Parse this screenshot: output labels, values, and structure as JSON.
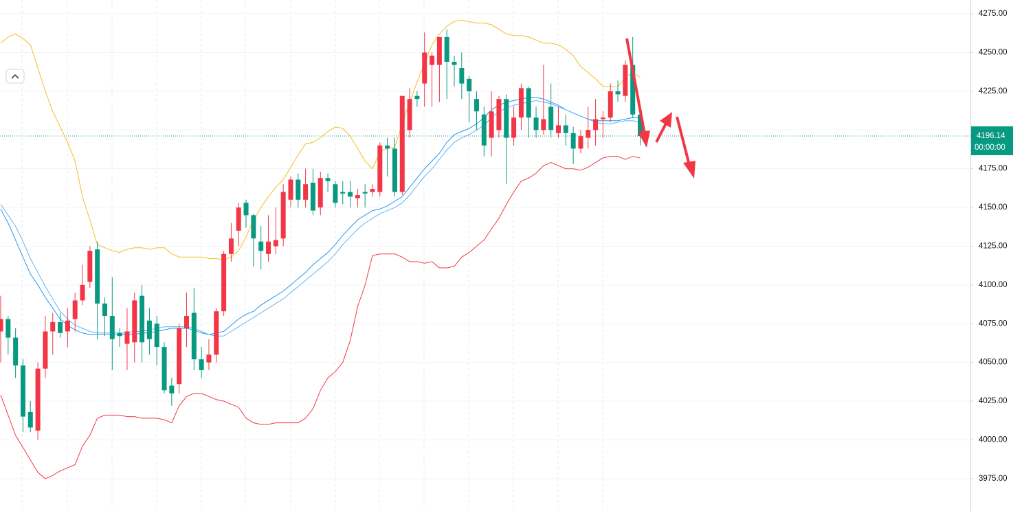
{
  "chart_data": {
    "type": "candlestick",
    "up_color": "#f23645",
    "down_color": "#089981",
    "open": [
      4070,
      4078,
      4066,
      4048,
      4018,
      4006,
      4046,
      4070,
      4076,
      4070,
      4078,
      4090,
      4102,
      4123,
      4088,
      4080,
      4069,
      4062,
      4063,
      4093,
      4077,
      4075,
      4060,
      4035,
      4036,
      4072,
      4082,
      4052,
      4050,
      4055,
      4083,
      4120,
      4135,
      4153,
      4145,
      4128,
      4120,
      4125,
      4130,
      4155,
      4168,
      4155,
      4166,
      4150,
      4169,
      4165,
      4160,
      4160,
      4156,
      4160,
      4160,
      4160,
      4190,
      4188,
      4160,
      4200,
      4222,
      4230,
      4242,
      4242,
      4260,
      4244,
      4240,
      4233,
      4220,
      4210,
      4195,
      4200,
      4220,
      4195,
      4208,
      4227,
      4208,
      4200,
      4215,
      4198,
      4203,
      4198,
      4188,
      4195,
      4200,
      4207,
      4208,
      4225,
      4222,
      4242,
      4210
    ],
    "high": [
      4093,
      4080,
      4072,
      4052,
      4025,
      4050,
      4080,
      4082,
      4082,
      4085,
      4095,
      4113,
      4125,
      4128,
      4092,
      4105,
      4072,
      4085,
      4095,
      4100,
      4085,
      4080,
      4063,
      4040,
      4075,
      4095,
      4098,
      4060,
      4065,
      4085,
      4122,
      4140,
      4153,
      4155,
      4146,
      4138,
      4145,
      4150,
      4165,
      4170,
      4172,
      4175,
      4175,
      4173,
      4172,
      4167,
      4167,
      4167,
      4162,
      4165,
      4165,
      4192,
      4195,
      4195,
      4222,
      4227,
      4225,
      4263,
      4250,
      4260,
      4265,
      4248,
      4250,
      4235,
      4225,
      4215,
      4225,
      4222,
      4223,
      4215,
      4230,
      4228,
      4215,
      4242,
      4230,
      4215,
      4210,
      4202,
      4200,
      4215,
      4220,
      4212,
      4230,
      4232,
      4245,
      4260,
      4212
    ],
    "low": [
      4050,
      4055,
      4040,
      4005,
      4005,
      4000,
      4040,
      4055,
      4066,
      4060,
      4070,
      4087,
      4098,
      4065,
      4067,
      4045,
      4060,
      4045,
      4050,
      4050,
      4055,
      4048,
      4030,
      4022,
      4030,
      4060,
      4045,
      4040,
      4045,
      4050,
      4080,
      4115,
      4125,
      4137,
      4112,
      4110,
      4115,
      4120,
      4125,
      4150,
      4150,
      4150,
      4145,
      4145,
      4160,
      4150,
      4152,
      4150,
      4150,
      4150,
      4157,
      4157,
      4170,
      4157,
      4158,
      4195,
      4215,
      4215,
      4215,
      4218,
      4220,
      4228,
      4220,
      4205,
      4200,
      4183,
      4183,
      4195,
      4165,
      4190,
      4200,
      4195,
      4195,
      4197,
      4195,
      4195,
      4190,
      4178,
      4185,
      4188,
      4190,
      4195,
      4205,
      4218,
      4218,
      4208,
      4190
    ],
    "close": [
      4078,
      4066,
      4048,
      4015,
      4008,
      4046,
      4070,
      4076,
      4069,
      4077,
      4090,
      4100,
      4122,
      4088,
      4080,
      4065,
      4067,
      4070,
      4090,
      4063,
      4065,
      4060,
      4032,
      4030,
      4072,
      4080,
      4052,
      4045,
      4055,
      4083,
      4120,
      4130,
      4150,
      4145,
      4130,
      4122,
      4128,
      4129,
      4160,
      4168,
      4155,
      4165,
      4148,
      4169,
      4167,
      4153,
      4159,
      4157,
      4158,
      4159,
      4162,
      4190,
      4188,
      4160,
      4222,
      4220,
      4220,
      4250,
      4248,
      4260,
      4244,
      4242,
      4230,
      4225,
      4212,
      4190,
      4212,
      4220,
      4195,
      4208,
      4227,
      4208,
      4200,
      4207,
      4200,
      4203,
      4198,
      4188,
      4196,
      4200,
      4207,
      4208,
      4225,
      4223,
      4242,
      4210,
      4196.14
    ],
    "overlays": [
      {
        "color": "#f5bd1f",
        "values": [
          4256,
          4260,
          4262,
          4259,
          4255,
          4240,
          4225,
          4212,
          4202,
          4192,
          4180,
          4157,
          4142,
          4126,
          4124,
          4122,
          4121,
          4123,
          4124,
          4124,
          4123,
          4124,
          4124,
          4120,
          4118,
          4118,
          4118,
          4118,
          4117,
          4117,
          4116,
          4118,
          4122,
          4131,
          4142,
          4150,
          4157,
          4163,
          4168,
          4176,
          4184,
          4191,
          4192,
          4195,
          4199,
          4202,
          4201,
          4196,
          4188,
          4180,
          4175,
          4186,
          4188,
          4189,
          4204,
          4218,
          4231,
          4243,
          4255,
          4262,
          4267,
          4270,
          4271,
          4270,
          4269,
          4269,
          4268,
          4265,
          4262,
          4261,
          4261,
          4260,
          4258,
          4256,
          4256,
          4255,
          4252,
          4248,
          4241,
          4237,
          4233,
          4228,
          4228,
          4228,
          4234,
          4237,
          4234
        ]
      },
      {
        "color": "#f23645",
        "values": [
          4029,
          4016,
          4003,
          3995,
          3987,
          3979,
          3975,
          3977,
          3980,
          3982,
          3984,
          3996,
          4003,
          4014,
          4016,
          4016,
          4016,
          4015,
          4015,
          4014,
          4014,
          4014,
          4013,
          4011,
          4022,
          4028,
          4030,
          4030,
          4028,
          4026,
          4025,
          4023,
          4021,
          4014,
          4011,
          4010,
          4010,
          4011,
          4011,
          4011,
          4011,
          4014,
          4020,
          4032,
          4040,
          4044,
          4050,
          4064,
          4086,
          4100,
          4119,
          4120,
          4120,
          4120,
          4118,
          4115,
          4115,
          4114,
          4115,
          4111,
          4111,
          4112,
          4118,
          4121,
          4125,
          4129,
          4136,
          4143,
          4152,
          4160,
          4167,
          4169,
          4172,
          4177,
          4179,
          4177,
          4175,
          4175,
          4174,
          4176,
          4179,
          4182,
          4183,
          4183,
          4181,
          4183,
          4182
        ]
      },
      {
        "color": "#2196f3",
        "values": [
          4149,
          4140,
          4129,
          4118,
          4107,
          4100,
          4092,
          4085,
          4078,
          4074,
          4071,
          4069,
          4068,
          4068,
          4068,
          4068,
          4068,
          4068,
          4068,
          4069,
          4069,
          4070,
          4071,
          4072,
          4072,
          4072,
          4071,
          4069,
          4068,
          4069,
          4070,
          4074,
          4078,
          4081,
          4083,
          4087,
          4090,
          4093,
          4096,
          4100,
          4104,
          4108,
          4113,
          4117,
          4121,
          4126,
          4132,
          4137,
          4142,
          4145,
          4148,
          4149,
          4151,
          4154,
          4157,
          4163,
          4169,
          4175,
          4180,
          4185,
          4192,
          4197,
          4199,
          4201,
          4204,
          4208,
          4213,
          4216,
          4218,
          4219,
          4220,
          4221,
          4221,
          4220,
          4218,
          4216,
          4213,
          4211,
          4209,
          4207,
          4206,
          4206,
          4206,
          4206,
          4207,
          4208,
          4208
        ]
      },
      {
        "color": "#5fb4f5",
        "values": [
          4152,
          4145,
          4138,
          4128,
          4117,
          4108,
          4099,
          4091,
          4083,
          4078,
          4074,
          4072,
          4070,
          4069,
          4069,
          4069,
          4069,
          4069,
          4070,
          4070,
          4071,
          4072,
          4073,
          4073,
          4073,
          4073,
          4072,
          4070,
          4068,
          4067,
          4067,
          4070,
          4073,
          4076,
          4079,
          4082,
          4085,
          4088,
          4091,
          4095,
          4099,
          4103,
          4107,
          4111,
          4115,
          4120,
          4126,
          4131,
          4136,
          4140,
          4143,
          4146,
          4148,
          4150,
          4153,
          4158,
          4164,
          4170,
          4175,
          4181,
          4187,
          4192,
          4195,
          4197,
          4200,
          4203,
          4208,
          4212,
          4214,
          4216,
          4217,
          4218,
          4219,
          4218,
          4217,
          4215,
          4213,
          4211,
          4209,
          4207,
          4205,
          4204,
          4204,
          4205,
          4206,
          4206,
          4205
        ]
      }
    ],
    "ylim": [
      3954.1,
      4283.9
    ],
    "yticks": [
      {
        "value": 3975,
        "label": "3975.00"
      },
      {
        "value": 4000,
        "label": "4000.00"
      },
      {
        "value": 4025,
        "label": "4025.00"
      },
      {
        "value": 4050,
        "label": "4050.00"
      },
      {
        "value": 4075,
        "label": "4075.00"
      },
      {
        "value": 4100,
        "label": "4100.00"
      },
      {
        "value": 4125,
        "label": "4125.00"
      },
      {
        "value": 4150,
        "label": "4150.00"
      },
      {
        "value": 4175,
        "label": "4175.00"
      },
      {
        "value": 4200,
        "label": "4200.00"
      },
      {
        "value": 4225,
        "label": "4225.00"
      },
      {
        "value": 4250,
        "label": "4250.00"
      },
      {
        "value": 4275,
        "label": "4275.00"
      }
    ],
    "grid": true,
    "last_price": 4196.14,
    "countdown": "00:00:00"
  }
}
